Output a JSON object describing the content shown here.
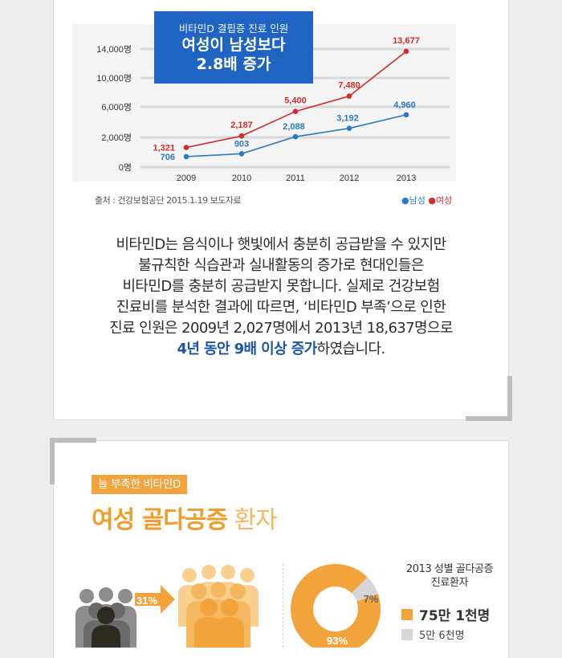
{
  "callout": {
    "subtitle": "비타민D 결핍증 진료 인원",
    "line1": "여성이 남성보다",
    "line2": "2.8배 증가"
  },
  "chart_data": {
    "type": "line",
    "x": [
      "2009",
      "2010",
      "2011",
      "2012",
      "2013"
    ],
    "series": [
      {
        "name": "남성",
        "values": [
          706,
          903,
          2088,
          3192,
          4960
        ],
        "labels": [
          "706",
          "903",
          "2,088",
          "3,192",
          "4,960"
        ],
        "color": "#2a7ac2"
      },
      {
        "name": "여성",
        "values": [
          1321,
          2187,
          5400,
          7480,
          13677
        ],
        "labels": [
          "1,321",
          "2,187",
          "5,400",
          "7,480",
          "13,677"
        ],
        "color": "#d12b2b"
      }
    ],
    "y_ticks": [
      {
        "value": 0,
        "label": "0명"
      },
      {
        "value": 2000,
        "label": "2,000명"
      },
      {
        "value": 6000,
        "label": "6,000명"
      },
      {
        "value": 10000,
        "label": "10,000명"
      },
      {
        "value": 14000,
        "label": "14,000명"
      }
    ],
    "ylim": [
      0,
      14000
    ],
    "grid": true,
    "legend": "bottom-right"
  },
  "source": "출처 : 건강보험공단 2015.1.19 보도자료",
  "legend": {
    "male": "●남성",
    "female": "●여성"
  },
  "paragraph": {
    "l1": "비타민D는 음식이나 햇빛에서 충분히 공급받을 수 있지만",
    "l2": "불규칙한 식습관과 실내활동의 증가로 현대인들은",
    "l3": "비타민D를 충분히 공급받지 못합니다. 실제로 건강보험",
    "l4": "진료비를 분석한 결과에 따르면, ‘비타민D 부족’으로 인한",
    "l5": "진료 인원은 2009년 2,027명에서 2013년 18,637명으로",
    "l6_highlight": "4년 동안 9배 이상 증가",
    "l6_rest": "하였습니다."
  },
  "section2": {
    "tag": "늘 부족한 비타민D",
    "title_bold": "여성 골다공증",
    "title_light": " 환자",
    "people_percent": "31%",
    "donut": {
      "female_pct": 93,
      "male_pct": 7,
      "female_label": "93%",
      "male_label": "7%",
      "female_color": "#f2a33c",
      "male_color": "#d6d6d6"
    },
    "stat_title_1": "2013 성별 골다공증",
    "stat_title_2": "진료환자",
    "female_count": "75만 1천명",
    "male_count": "5만 6천명"
  }
}
